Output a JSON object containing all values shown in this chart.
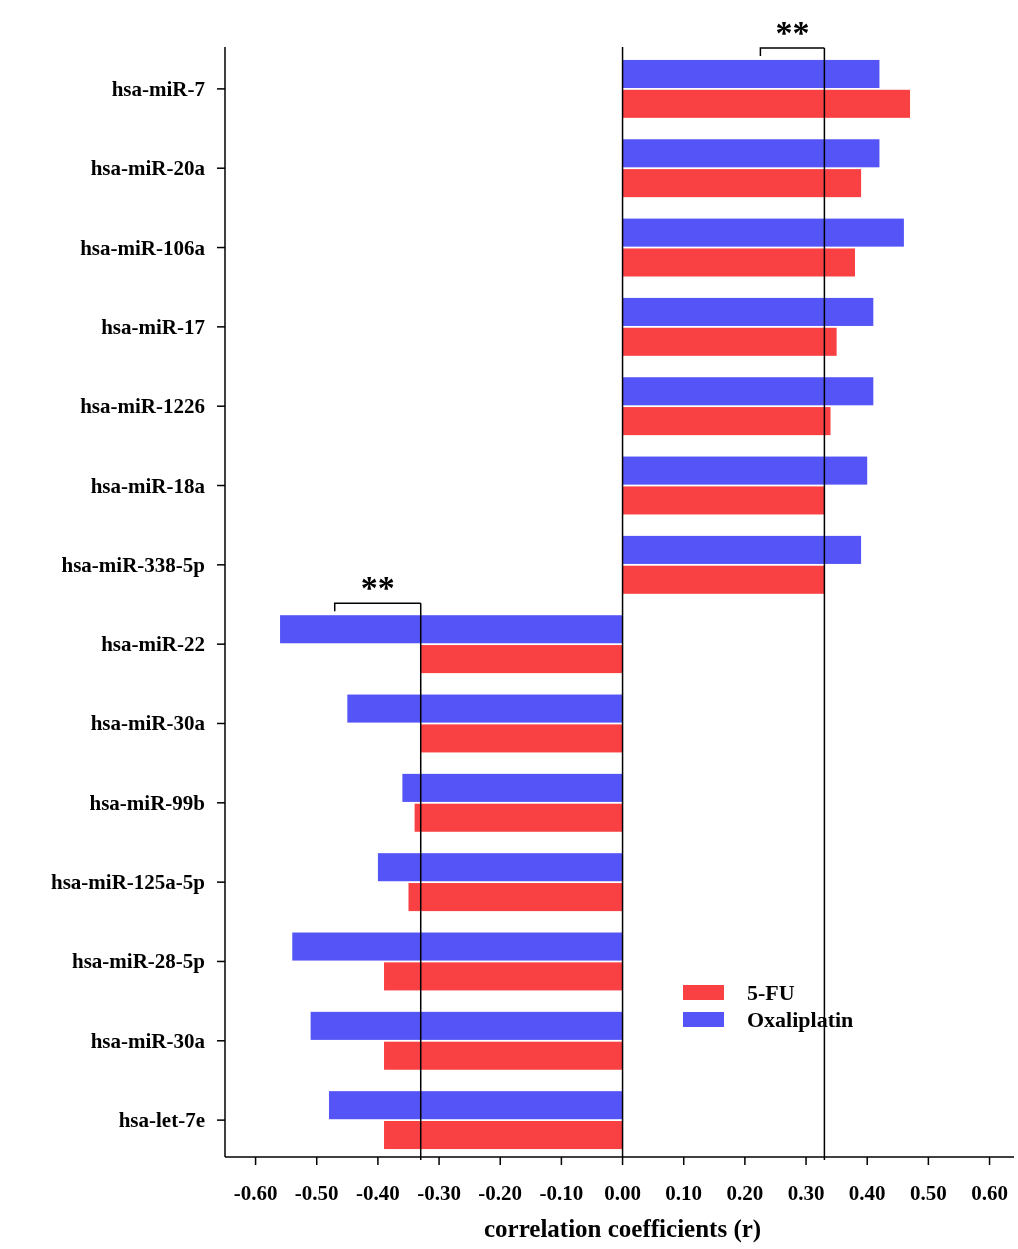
{
  "chart_data": {
    "type": "bar",
    "orientation": "horizontal",
    "xlabel": "correlation coefficients (r)",
    "categories": [
      "hsa-miR-7",
      "hsa-miR-20a",
      "hsa-miR-106a",
      "hsa-miR-17",
      "hsa-miR-1226",
      "hsa-miR-18a",
      "hsa-miR-338-5p",
      "hsa-miR-22",
      "hsa-miR-30a",
      "hsa-miR-99b",
      "hsa-miR-125a-5p",
      "hsa-miR-28-5p",
      "hsa-miR-30a",
      "hsa-let-7e"
    ],
    "series": [
      {
        "name": "5-FU",
        "color": "#f94144",
        "values": [
          0.47,
          0.39,
          0.38,
          0.35,
          0.34,
          0.33,
          0.33,
          -0.33,
          -0.33,
          -0.34,
          -0.35,
          -0.39,
          -0.39,
          -0.39
        ]
      },
      {
        "name": "Oxaliplatin",
        "color": "#5555f7",
        "values": [
          0.42,
          0.42,
          0.46,
          0.41,
          0.41,
          0.4,
          0.39,
          -0.56,
          -0.45,
          -0.36,
          -0.4,
          -0.54,
          -0.51,
          -0.48
        ]
      }
    ],
    "xlim": [
      -0.65,
      0.64
    ],
    "xticks": [
      {
        "value": -0.6,
        "label": "-0.60"
      },
      {
        "value": -0.5,
        "label": "-0.50"
      },
      {
        "value": -0.4,
        "label": "-0.40"
      },
      {
        "value": -0.3,
        "label": "-0.30"
      },
      {
        "value": -0.2,
        "label": "-0.20"
      },
      {
        "value": -0.1,
        "label": "-0.10"
      },
      {
        "value": 0,
        "label": "0.00"
      },
      {
        "value": 0.1,
        "label": "0.10"
      },
      {
        "value": 0.2,
        "label": "0.20"
      },
      {
        "value": 0.3,
        "label": "0.30"
      },
      {
        "value": 0.4,
        "label": "0.40"
      },
      {
        "value": 0.5,
        "label": "0.50"
      },
      {
        "value": 0.6,
        "label": "0.60"
      }
    ],
    "ref_lines": [
      {
        "axis": "x",
        "value": 0.33,
        "color": "#000000"
      },
      {
        "axis": "x",
        "value": -0.33,
        "color": "#000000"
      }
    ],
    "annotations": [
      "**",
      "**"
    ],
    "legend": "bottom right"
  }
}
